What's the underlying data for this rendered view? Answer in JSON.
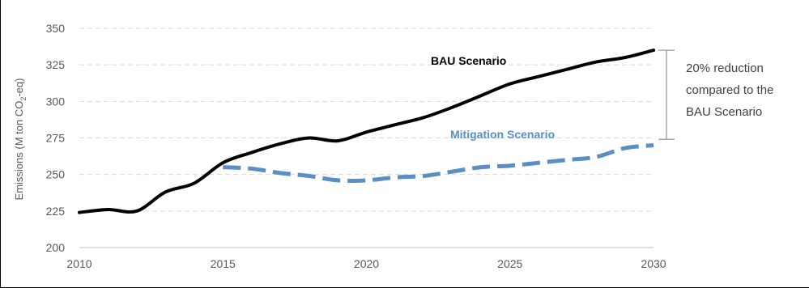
{
  "chart_data": {
    "type": "line",
    "title": "",
    "ylabel": "Emissions (M ton CO2-eq)",
    "xlabel": "",
    "ylim": [
      200,
      350
    ],
    "xlim": [
      2010,
      2030
    ],
    "yticks": [
      "200",
      "225",
      "250",
      "275",
      "300",
      "325",
      "350"
    ],
    "xticks": [
      "2010",
      "2015",
      "2020",
      "2025",
      "2030"
    ],
    "grid": true,
    "series": [
      {
        "name": "BAU Scenario",
        "color": "#000000",
        "style": "solid",
        "x": [
          2010,
          2011,
          2012,
          2013,
          2014,
          2015,
          2016,
          2017,
          2018,
          2019,
          2020,
          2021,
          2022,
          2023,
          2024,
          2025,
          2026,
          2027,
          2028,
          2029,
          2030
        ],
        "values": [
          224,
          226,
          225,
          238,
          244,
          258,
          265,
          271,
          275,
          273,
          279,
          284,
          289,
          296,
          304,
          312,
          317,
          322,
          327,
          330,
          335
        ]
      },
      {
        "name": "Mitigation Scenario",
        "color": "#5b8ec2",
        "style": "dashed",
        "x": [
          2015,
          2016,
          2017,
          2018,
          2019,
          2020,
          2021,
          2022,
          2023,
          2024,
          2025,
          2026,
          2027,
          2028,
          2029,
          2030
        ],
        "values": [
          255,
          254,
          251,
          249,
          246,
          246,
          248,
          249,
          252,
          255,
          256,
          258,
          260,
          262,
          268,
          270
        ]
      }
    ],
    "annotation": {
      "lines": [
        "20% reduction",
        "compared to the",
        "BAU Scenario"
      ],
      "from": 335,
      "to": 274,
      "at_x": 2030
    }
  }
}
